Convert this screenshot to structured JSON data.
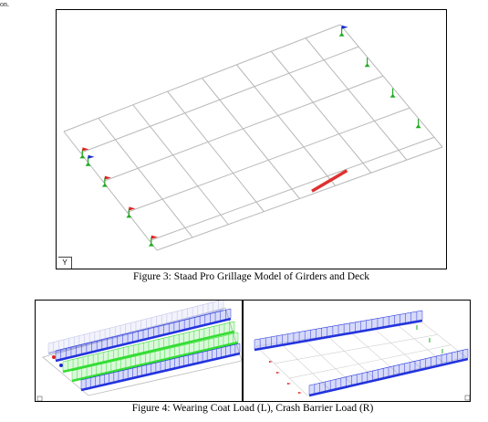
{
  "page": {
    "top_fragment": "on."
  },
  "figure3": {
    "caption": "Figure 3: Staad Pro Grillage Model of Girders and Deck",
    "axis_indicator": "Y"
  },
  "figure4": {
    "caption": "Figure 4: Wearing Coat Load  (L), Crash Barrier Load (R)"
  },
  "colors": {
    "grid": "#b8b8b8",
    "support_green": "#22aa22",
    "support_red": "#e02020",
    "support_blue": "#1a2acc",
    "highlight_member": "#e03030",
    "load_blue": "#2233dd",
    "load_green": "#33dd33",
    "load_violet": "#b9bde8"
  }
}
